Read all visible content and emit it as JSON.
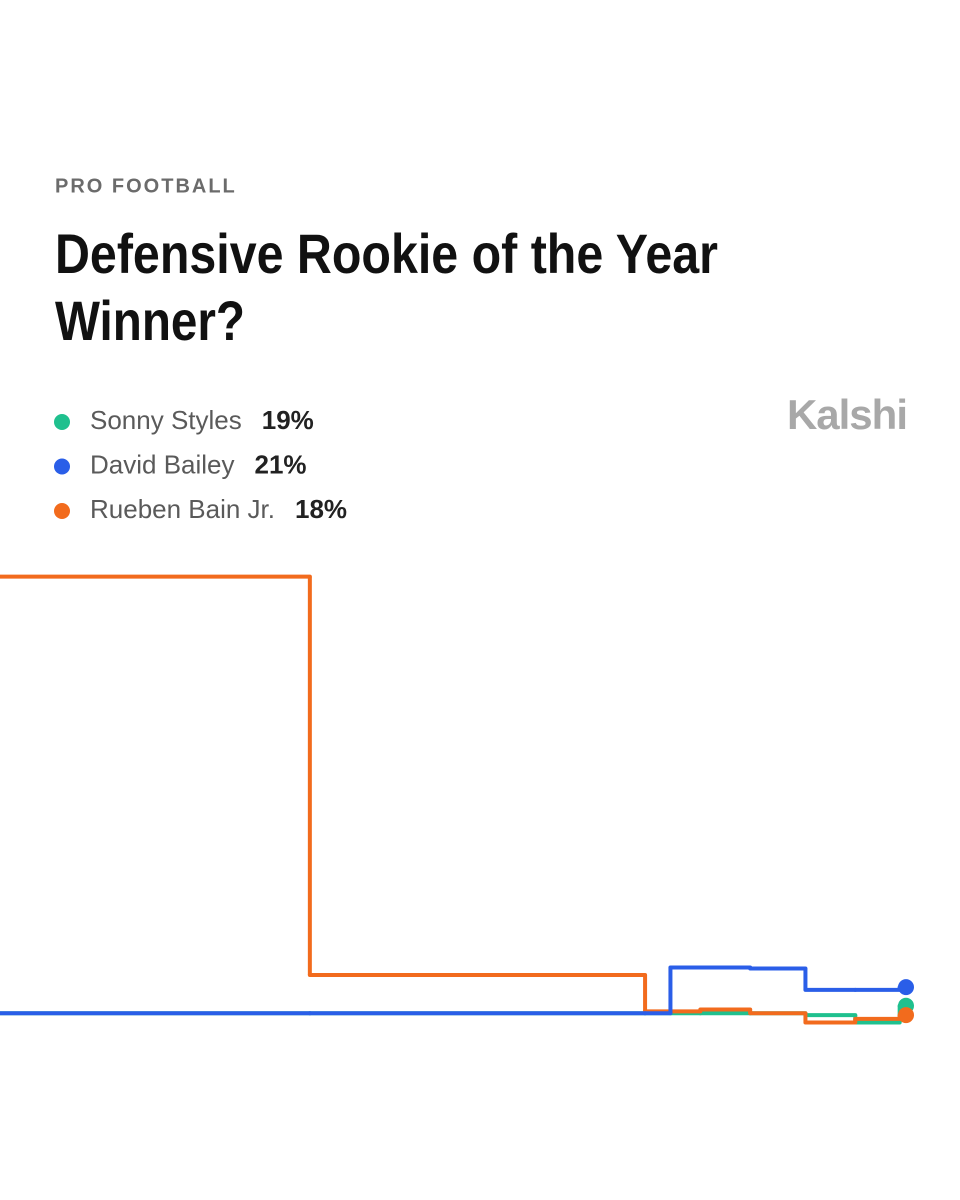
{
  "chart_data": {
    "type": "step",
    "kicker": "PRO FOOTBALL",
    "title": [
      "Defensive Rookie of the Year",
      "Winner?"
    ],
    "brand": "Kalshi",
    "x": [
      0,
      34.2,
      71.2,
      74,
      77.3,
      82.8,
      88.9,
      94.4,
      99.3,
      100
    ],
    "xlim": [
      0,
      100
    ],
    "ylim": [
      0,
      70
    ],
    "series": [
      {
        "name": "Sonny Styles",
        "color": "#1fc08e",
        "values": [
          18.2,
          18.2,
          18.2,
          18.2,
          18.2,
          18.2,
          18,
          17.2,
          19,
          19
        ],
        "value_labels": [
          null,
          null,
          null,
          null,
          null,
          null,
          null,
          null,
          null,
          "19%"
        ]
      },
      {
        "name": "David Bailey",
        "color": "#2a5ee8",
        "values": [
          18.2,
          18.2,
          18.2,
          23.1,
          23.1,
          23,
          20.7,
          20.7,
          21,
          21
        ],
        "value_labels": [
          null,
          null,
          null,
          null,
          null,
          null,
          null,
          null,
          null,
          "21%"
        ]
      },
      {
        "name": "Rueben Bain Jr.",
        "color": "#f26b1d",
        "values": [
          65,
          22.3,
          18.4,
          18.4,
          18.6,
          18.2,
          17.2,
          17.6,
          18,
          18
        ],
        "value_labels": [
          null,
          null,
          null,
          null,
          null,
          null,
          null,
          null,
          null,
          "18%"
        ]
      }
    ]
  }
}
